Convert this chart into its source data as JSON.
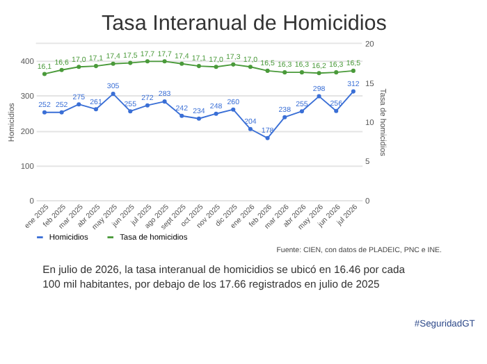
{
  "chart_data": {
    "type": "line",
    "title": "Tasa Interanual de Homicidios",
    "categories": [
      "ene 2025",
      "feb 2025",
      "mar 2025",
      "abr 2025",
      "may 2025",
      "jun 2025",
      "jul 2025",
      "ago 2025",
      "sept 2025",
      "oct 2025",
      "nov 2025",
      "dic 2025",
      "ene 2026",
      "feb 2026",
      "mar 2026",
      "abr 2026",
      "may 2026",
      "jun 2026",
      "jul 2026"
    ],
    "series": [
      {
        "name": "Homicidios",
        "color": "#3a6fd6",
        "values": [
          252,
          252,
          275,
          261,
          305,
          255,
          272,
          283,
          242,
          234,
          248,
          260,
          204,
          178,
          238,
          255,
          298,
          256,
          312
        ],
        "value_labels": [
          "252",
          "252",
          "275",
          "261",
          "305",
          "255",
          "272",
          "283",
          "242",
          "234",
          "248",
          "260",
          "204",
          "178",
          "238",
          "255",
          "298",
          "256",
          "312"
        ]
      },
      {
        "name": "Tasa de homicidios",
        "color": "#4a9a3a",
        "axis": "y2",
        "values": [
          16.1,
          16.6,
          17.0,
          17.1,
          17.4,
          17.5,
          17.7,
          17.7,
          17.4,
          17.1,
          17.0,
          17.3,
          17.0,
          16.5,
          16.3,
          16.3,
          16.2,
          16.3,
          16.5
        ],
        "value_labels": [
          "16,1",
          "16,6",
          "17,0",
          "17,1",
          "17,4",
          "17,5",
          "17,7",
          "17,7",
          "17,4",
          "17,1",
          "17,0",
          "17,3",
          "17,0",
          "16,5",
          "16,3",
          "16,3",
          "16,2",
          "16,3",
          "16,5"
        ]
      }
    ],
    "ylabel": "Homicidios",
    "y2label": "Tasa de homicidios",
    "ylim": [
      0,
      450
    ],
    "yticks": [
      0,
      100,
      200,
      300,
      400
    ],
    "y2lim": [
      0,
      20
    ],
    "y2ticks": [
      0,
      5,
      10,
      15,
      20
    ],
    "grid": "y",
    "legend": "bottom",
    "marker": "circle",
    "line_style": "solid",
    "annotations": [
      "Fuente: CIEN, con datos de PLADEIC, PNC e INE.",
      "En julio de 2026, la tasa interanual de homicidios se ubicó en 16.46 por cada 100 mil habitantes, por debajo de los 17.66 registrados en julio de 2025",
      "#SeguridadGT"
    ]
  }
}
